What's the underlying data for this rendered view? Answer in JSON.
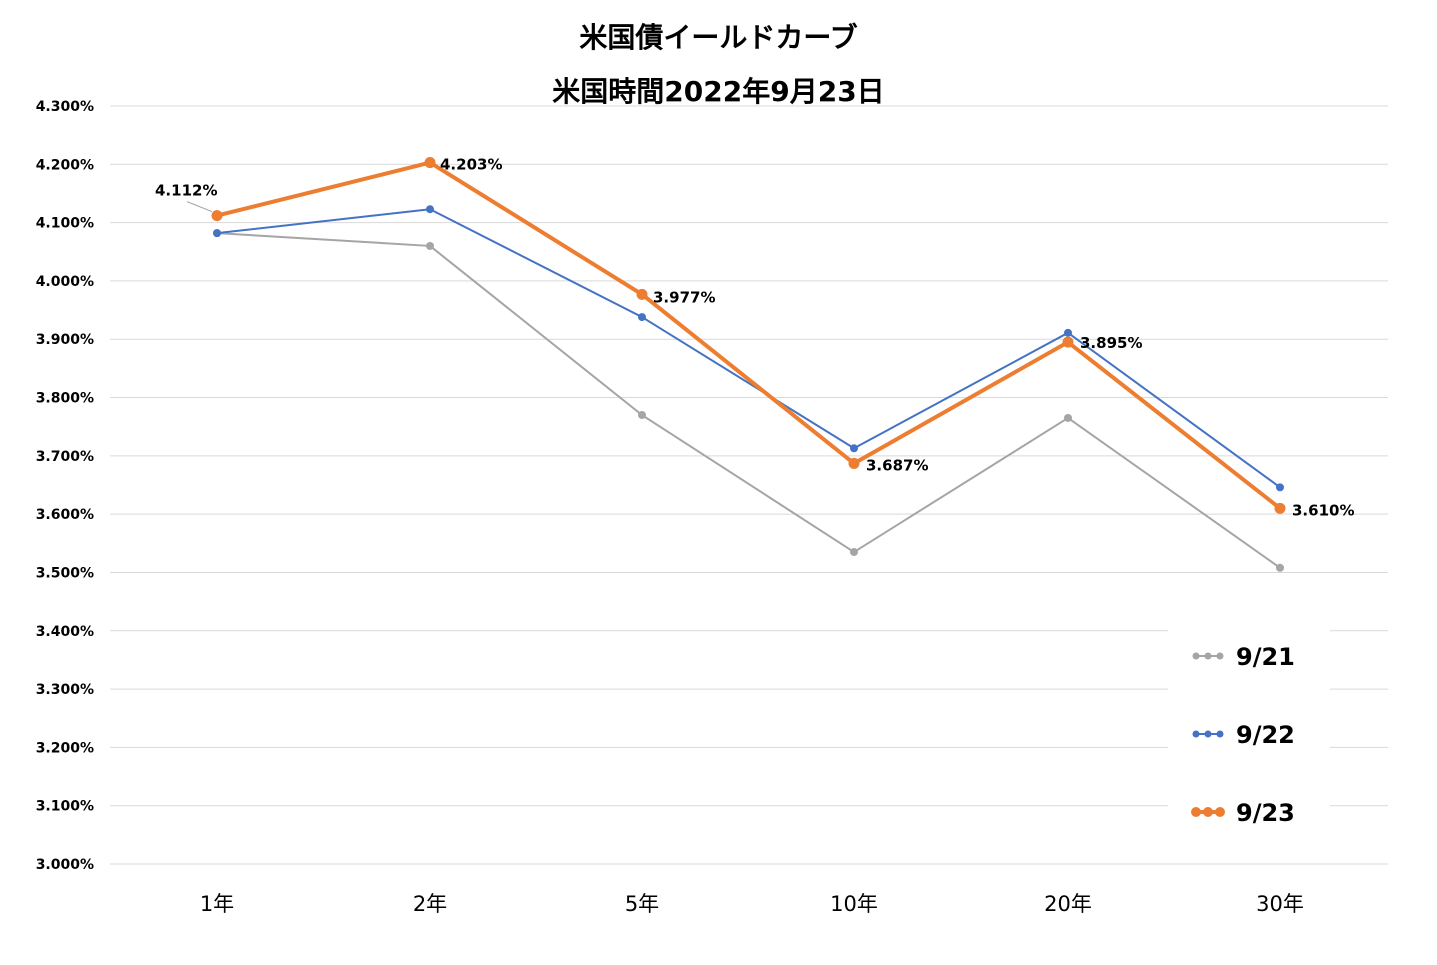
{
  "chart_data": {
    "type": "line",
    "title": "米国債イールドカーブ",
    "subtitle": "米国時間2022年9月23日",
    "xlabel": "",
    "ylabel": "",
    "categories": [
      "1年",
      "2年",
      "5年",
      "10年",
      "20年",
      "30年"
    ],
    "ylim": [
      3.0,
      4.3
    ],
    "ytick_step": 0.1,
    "ytick_labels": [
      "4.300%",
      "4.200%",
      "4.100%",
      "4.000%",
      "3.900%",
      "3.800%",
      "3.700%",
      "3.600%",
      "3.500%",
      "3.400%",
      "3.300%",
      "3.200%",
      "3.100%",
      "3.000%"
    ],
    "grid": true,
    "legend_position": "bottom-right",
    "series": [
      {
        "name": "9/21",
        "color": "#A5A5A5",
        "values": [
          4.082,
          4.06,
          3.77,
          3.535,
          3.765,
          3.508
        ]
      },
      {
        "name": "9/22",
        "color": "#4472C4",
        "values": [
          4.082,
          4.123,
          3.938,
          3.713,
          3.911,
          3.646
        ]
      },
      {
        "name": "9/23",
        "color": "#ED7D31",
        "values": [
          4.112,
          4.203,
          3.977,
          3.687,
          3.895,
          3.61
        ]
      }
    ],
    "data_labels": [
      "4.112%",
      "4.203%",
      "3.977%",
      "3.687%",
      "3.895%",
      "3.610%"
    ]
  }
}
